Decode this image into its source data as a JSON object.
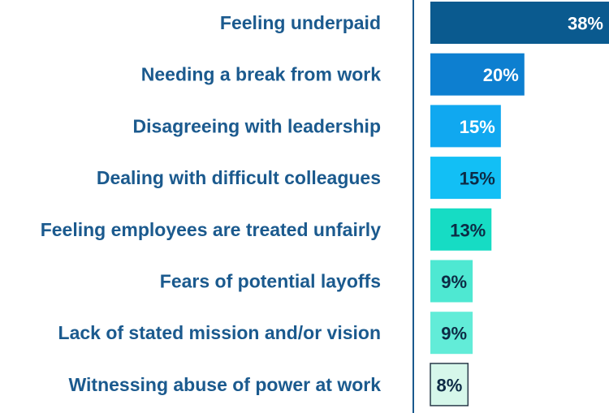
{
  "chart_data": {
    "type": "bar",
    "orientation": "horizontal",
    "categories": [
      "Feeling underpaid",
      "Needing a break from work",
      "Disagreeing with leadership",
      "Dealing with difficult colleagues",
      "Feeling employees are treated unfairly",
      "Fears of potential layoffs",
      "Lack of stated mission and/or vision",
      "Witnessing abuse of power at work"
    ],
    "values": [
      38,
      20,
      15,
      15,
      13,
      9,
      9,
      8
    ],
    "value_labels": [
      "38%",
      "20%",
      "15%",
      "15%",
      "13%",
      "9%",
      "9%",
      "8%"
    ],
    "title": "",
    "xlabel": "",
    "ylabel": "",
    "xlim": [
      0,
      38
    ],
    "grid": false,
    "legend": "none",
    "bar_colors": [
      "#0a5a8f",
      "#0d7fd0",
      "#10a8f0",
      "#12bff5",
      "#16dcc4",
      "#4ee8d2",
      "#62ecd8",
      "#d6f7ea"
    ],
    "label_colors": [
      "#ffffff",
      "#ffffff",
      "#ffffff",
      "#0d2b45",
      "#0d2b45",
      "#0d2b45",
      "#0d2b45",
      "#0d2b45"
    ],
    "axis_color": "#1b5a8e",
    "category_label_color": "#1b5a8e"
  }
}
